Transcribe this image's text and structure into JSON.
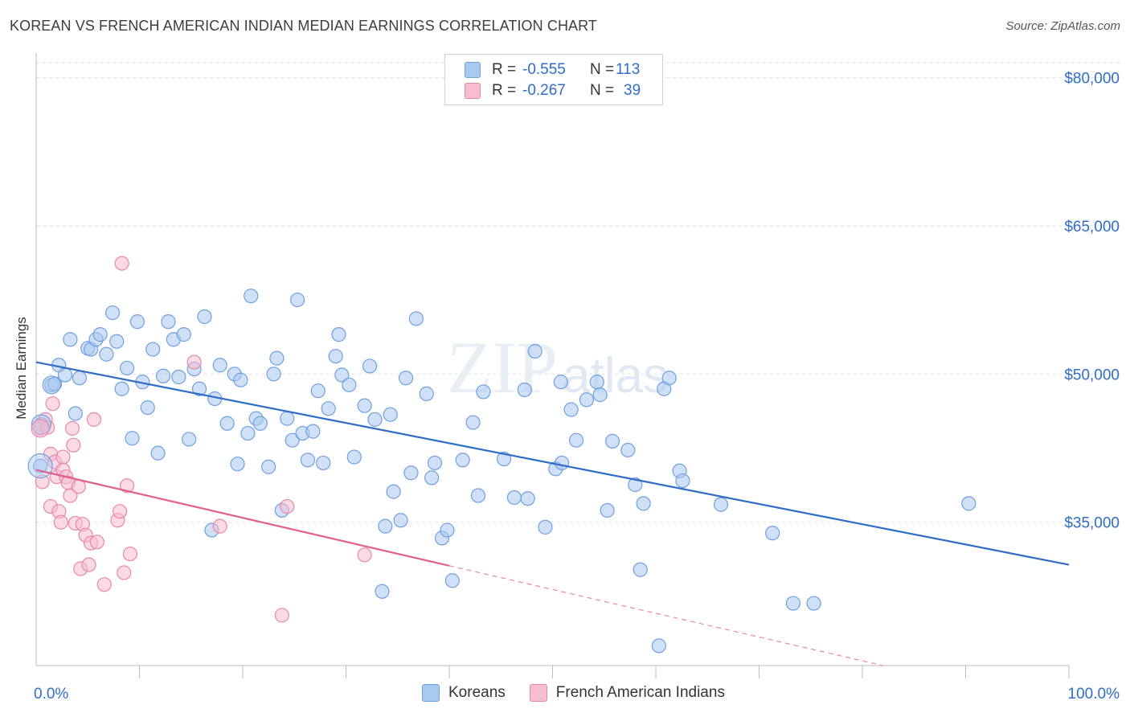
{
  "title": "KOREAN VS FRENCH AMERICAN INDIAN MEDIAN EARNINGS CORRELATION CHART",
  "source": "Source: ZipAtlas.com",
  "watermark": "ZIPatlas",
  "legend": {
    "rows": [
      {
        "r_label": "R =",
        "r_value": "-0.555",
        "n_label": "N =",
        "n_value": "113",
        "color": "#a9c8f0",
        "border": "#6fa0e0"
      },
      {
        "r_label": "R =",
        "r_value": "-0.267",
        "n_label": "N =",
        "n_value": "39",
        "color": "#f6bcd0",
        "border": "#e888a8"
      }
    ]
  },
  "bottom_legend": [
    {
      "label": "Koreans",
      "color": "#a9c8f0",
      "border": "#6fa0e0"
    },
    {
      "label": "French American Indians",
      "color": "#f6bcd0",
      "border": "#e888a8"
    }
  ],
  "chart_data": {
    "type": "scatter",
    "title": "KOREAN VS FRENCH AMERICAN INDIAN MEDIAN EARNINGS CORRELATION CHART",
    "xlabel": "",
    "ylabel": "Median Earnings",
    "xlim": [
      0,
      100
    ],
    "ylim": [
      20500,
      81500
    ],
    "x_tick_labels": [
      "0.0%",
      "100.0%"
    ],
    "y_ticks": [
      35000,
      50000,
      65000,
      80000
    ],
    "y_tick_labels": [
      "$35,000",
      "$50,000",
      "$65,000",
      "$80,000"
    ],
    "grid": true,
    "series": [
      {
        "name": "Koreans",
        "color": "#6fa0e0",
        "fill": "#a9c8f0",
        "trend": {
          "x": [
            0,
            100
          ],
          "y": [
            51200,
            30700
          ],
          "color": "#2f6dc7"
        },
        "points": [
          [
            0.4,
            40700
          ],
          [
            0.5,
            44900
          ],
          [
            1.5,
            48900
          ],
          [
            1.8,
            49000
          ],
          [
            2.2,
            50900
          ],
          [
            2.8,
            49900
          ],
          [
            3.3,
            53500
          ],
          [
            3.8,
            46000
          ],
          [
            4.2,
            49600
          ],
          [
            5.0,
            52600
          ],
          [
            5.3,
            52500
          ],
          [
            5.8,
            53500
          ],
          [
            6.2,
            54000
          ],
          [
            6.8,
            52000
          ],
          [
            7.4,
            56200
          ],
          [
            7.8,
            53300
          ],
          [
            8.3,
            48500
          ],
          [
            8.8,
            50600
          ],
          [
            9.3,
            43500
          ],
          [
            9.8,
            55300
          ],
          [
            10.3,
            49200
          ],
          [
            10.8,
            46600
          ],
          [
            11.3,
            52500
          ],
          [
            11.8,
            42000
          ],
          [
            12.3,
            49800
          ],
          [
            12.8,
            55300
          ],
          [
            13.3,
            53500
          ],
          [
            13.8,
            49700
          ],
          [
            14.3,
            54000
          ],
          [
            14.8,
            43400
          ],
          [
            15.3,
            50500
          ],
          [
            15.8,
            48500
          ],
          [
            16.3,
            55800
          ],
          [
            17.0,
            34200
          ],
          [
            17.3,
            47500
          ],
          [
            17.8,
            50900
          ],
          [
            18.5,
            45000
          ],
          [
            19.2,
            50000
          ],
          [
            19.5,
            40900
          ],
          [
            19.8,
            49400
          ],
          [
            20.5,
            44000
          ],
          [
            20.8,
            57900
          ],
          [
            21.3,
            45500
          ],
          [
            21.7,
            45000
          ],
          [
            22.5,
            40600
          ],
          [
            23.0,
            50000
          ],
          [
            23.3,
            51600
          ],
          [
            23.8,
            36200
          ],
          [
            24.3,
            45500
          ],
          [
            24.8,
            43300
          ],
          [
            25.3,
            57500
          ],
          [
            25.8,
            44000
          ],
          [
            26.3,
            41300
          ],
          [
            26.8,
            44200
          ],
          [
            27.3,
            48300
          ],
          [
            27.8,
            41000
          ],
          [
            28.3,
            46500
          ],
          [
            29.0,
            51800
          ],
          [
            29.3,
            54000
          ],
          [
            29.6,
            49900
          ],
          [
            30.3,
            48900
          ],
          [
            30.8,
            41600
          ],
          [
            31.8,
            46800
          ],
          [
            32.3,
            50800
          ],
          [
            32.8,
            45400
          ],
          [
            33.5,
            28000
          ],
          [
            33.8,
            34600
          ],
          [
            34.3,
            45900
          ],
          [
            34.6,
            38100
          ],
          [
            35.3,
            35200
          ],
          [
            35.8,
            49600
          ],
          [
            36.3,
            40000
          ],
          [
            36.8,
            55600
          ],
          [
            37.8,
            48000
          ],
          [
            38.3,
            39500
          ],
          [
            38.6,
            41000
          ],
          [
            39.3,
            33400
          ],
          [
            39.8,
            34200
          ],
          [
            40.3,
            29100
          ],
          [
            41.3,
            41300
          ],
          [
            42.3,
            45100
          ],
          [
            42.8,
            37700
          ],
          [
            43.3,
            48200
          ],
          [
            45.3,
            41400
          ],
          [
            46.3,
            37500
          ],
          [
            47.3,
            48400
          ],
          [
            47.6,
            37400
          ],
          [
            48.3,
            52300
          ],
          [
            49.3,
            34500
          ],
          [
            50.3,
            40400
          ],
          [
            50.8,
            49200
          ],
          [
            50.9,
            41000
          ],
          [
            51.8,
            46400
          ],
          [
            52.3,
            43300
          ],
          [
            53.3,
            47400
          ],
          [
            54.3,
            49200
          ],
          [
            54.6,
            47900
          ],
          [
            55.3,
            36200
          ],
          [
            55.8,
            43200
          ],
          [
            57.3,
            42300
          ],
          [
            58.0,
            38800
          ],
          [
            58.5,
            30200
          ],
          [
            58.8,
            36900
          ],
          [
            60.3,
            22500
          ],
          [
            60.8,
            48500
          ],
          [
            61.3,
            49600
          ],
          [
            62.3,
            40200
          ],
          [
            62.6,
            39200
          ],
          [
            66.3,
            36800
          ],
          [
            71.3,
            33900
          ],
          [
            73.3,
            26800
          ],
          [
            75.3,
            26800
          ],
          [
            90.3,
            36900
          ]
        ]
      },
      {
        "name": "French American Indians",
        "color": "#e888a8",
        "fill": "#f6bcd0",
        "trend": {
          "x": [
            0,
            40
          ],
          "y": [
            40300,
            30600
          ],
          "color": "#e05f8c"
        },
        "trend_dashed": {
          "x": [
            40,
            82
          ],
          "y": [
            30600,
            20500
          ],
          "color": "#e888a8"
        },
        "points": [
          [
            0.4,
            44500
          ],
          [
            0.6,
            39100
          ],
          [
            0.9,
            45400
          ],
          [
            1.1,
            44600
          ],
          [
            1.4,
            41900
          ],
          [
            1.4,
            36600
          ],
          [
            1.6,
            47000
          ],
          [
            1.8,
            41100
          ],
          [
            2.0,
            39600
          ],
          [
            2.2,
            36100
          ],
          [
            2.4,
            35000
          ],
          [
            2.6,
            41600
          ],
          [
            2.6,
            40300
          ],
          [
            2.9,
            39600
          ],
          [
            3.1,
            39000
          ],
          [
            3.3,
            37700
          ],
          [
            3.5,
            44500
          ],
          [
            3.6,
            42800
          ],
          [
            3.8,
            34900
          ],
          [
            4.1,
            38600
          ],
          [
            4.3,
            30300
          ],
          [
            4.5,
            34800
          ],
          [
            4.8,
            33700
          ],
          [
            5.1,
            30700
          ],
          [
            5.3,
            32900
          ],
          [
            5.6,
            45400
          ],
          [
            5.9,
            33000
          ],
          [
            6.6,
            28700
          ],
          [
            7.9,
            35200
          ],
          [
            8.1,
            36100
          ],
          [
            8.3,
            61200
          ],
          [
            8.5,
            29900
          ],
          [
            8.8,
            38700
          ],
          [
            9.1,
            31800
          ],
          [
            15.3,
            51200
          ],
          [
            17.8,
            34600
          ],
          [
            23.8,
            25600
          ],
          [
            24.3,
            36600
          ],
          [
            31.8,
            31700
          ]
        ]
      }
    ]
  }
}
